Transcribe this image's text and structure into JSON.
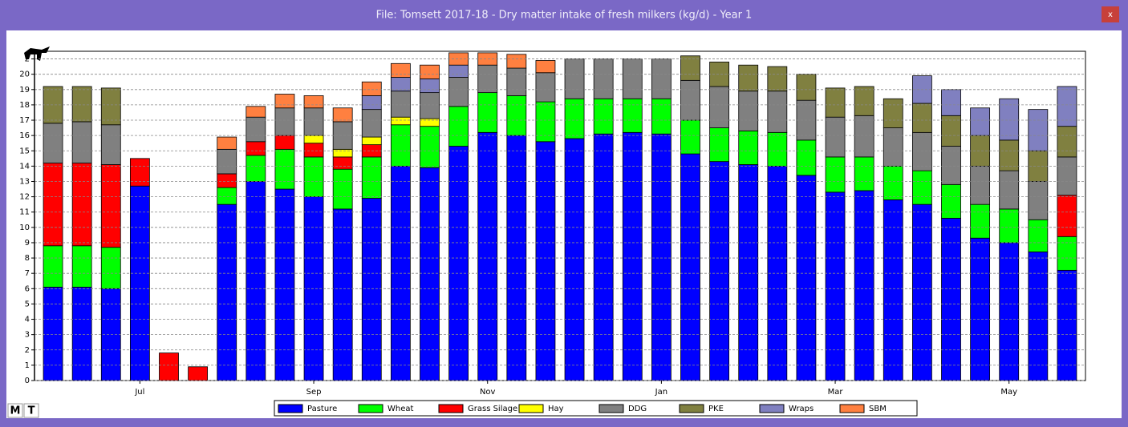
{
  "chart_data": {
    "type": "stacked_bar",
    "title": "File: Tomsett 2017-18 - Dry matter intake of fresh milkers (kg/d) - Year 1",
    "categories": [
      null,
      null,
      null,
      "Jul",
      null,
      null,
      null,
      null,
      null,
      "Sep",
      null,
      null,
      null,
      null,
      null,
      "Nov",
      null,
      null,
      null,
      null,
      null,
      "Jan",
      null,
      null,
      null,
      null,
      null,
      "Mar",
      null,
      null,
      null,
      null,
      null,
      "May",
      null,
      null
    ],
    "series": [
      {
        "name": "Pasture",
        "color": "#0000ff",
        "values": [
          6.1,
          6.1,
          6.0,
          12.7,
          0,
          0,
          11.5,
          13.0,
          12.5,
          12.0,
          11.2,
          11.9,
          14.0,
          13.9,
          15.3,
          16.2,
          16.0,
          15.6,
          15.8,
          16.1,
          16.2,
          16.1,
          14.8,
          14.3,
          14.1,
          14.0,
          13.4,
          12.3,
          12.4,
          11.8,
          11.5,
          10.6,
          9.3,
          9.0,
          8.4,
          7.2
        ]
      },
      {
        "name": "Wheat",
        "color": "#00ff00",
        "values": [
          2.7,
          2.7,
          2.7,
          0,
          0,
          0,
          1.1,
          1.7,
          2.6,
          2.6,
          2.6,
          2.7,
          2.7,
          2.7,
          2.6,
          2.6,
          2.6,
          2.6,
          2.6,
          2.3,
          2.2,
          2.3,
          2.2,
          2.2,
          2.2,
          2.2,
          2.3,
          2.3,
          2.2,
          2.2,
          2.2,
          2.2,
          2.2,
          2.2,
          2.1,
          2.2
        ]
      },
      {
        "name": "Grass Silage",
        "color": "#ff0000",
        "values": [
          5.4,
          5.4,
          5.4,
          1.8,
          1.8,
          0.9,
          0.9,
          0.9,
          0.9,
          0.9,
          0.8,
          0.8,
          0,
          0,
          0,
          0,
          0,
          0,
          0,
          0,
          0,
          0,
          0,
          0,
          0,
          0,
          0,
          0,
          0,
          0,
          0,
          0,
          0,
          0,
          0,
          2.7
        ]
      },
      {
        "name": "Hay",
        "color": "#ffff00",
        "values": [
          0,
          0,
          0,
          0,
          0,
          0,
          0,
          0,
          0,
          0.5,
          0.5,
          0.5,
          0.5,
          0.5,
          0,
          0,
          0,
          0,
          0,
          0,
          0,
          0,
          0,
          0,
          0,
          0,
          0,
          0,
          0,
          0,
          0,
          0,
          0,
          0,
          0,
          0
        ]
      },
      {
        "name": "DDG",
        "color": "#808080",
        "values": [
          2.6,
          2.7,
          2.6,
          0,
          0,
          0,
          1.6,
          1.6,
          1.8,
          1.8,
          1.8,
          1.8,
          1.7,
          1.7,
          1.9,
          1.8,
          1.8,
          1.9,
          2.6,
          2.6,
          2.6,
          2.6,
          2.6,
          2.7,
          2.6,
          2.7,
          2.6,
          2.6,
          2.7,
          2.5,
          2.5,
          2.5,
          2.5,
          2.5,
          2.5,
          2.5
        ]
      },
      {
        "name": "PKE",
        "color": "#808040",
        "values": [
          2.4,
          2.3,
          2.4,
          0,
          0,
          0,
          0,
          0,
          0,
          0,
          0,
          0,
          0,
          0,
          0,
          0,
          0,
          0,
          0,
          0,
          0,
          0,
          1.6,
          1.6,
          1.7,
          1.6,
          1.7,
          1.9,
          1.9,
          1.9,
          1.9,
          2.0,
          2.0,
          2.0,
          2.0,
          2.0
        ]
      },
      {
        "name": "Wraps",
        "color": "#8080c0",
        "values": [
          0,
          0,
          0,
          0,
          0,
          0,
          0,
          0,
          0,
          0,
          0,
          0.9,
          0.9,
          0.9,
          0.8,
          0,
          0,
          0,
          0,
          0,
          0,
          0,
          0,
          0,
          0,
          0,
          0,
          0,
          0,
          0,
          1.8,
          1.7,
          1.8,
          2.7,
          2.7,
          2.6
        ]
      },
      {
        "name": "SBM",
        "color": "#ff8040",
        "values": [
          0,
          0,
          0,
          0,
          0,
          0,
          0.8,
          0.7,
          0.9,
          0.8,
          0.9,
          0.9,
          0.9,
          0.9,
          0.8,
          0.8,
          0.9,
          0.8,
          0,
          0,
          0,
          0,
          0,
          0,
          0,
          0,
          0,
          0,
          0,
          0,
          0,
          0,
          0,
          0,
          0,
          0
        ]
      }
    ],
    "ylim": [
      0,
      21.5
    ],
    "yticks": [
      0,
      1,
      2,
      3,
      4,
      5,
      6,
      7,
      8,
      9,
      10,
      11,
      12,
      13,
      14,
      15,
      16,
      17,
      18,
      19,
      20,
      {
        "value": 21,
        "label": "2"
      }
    ],
    "grid": true,
    "legend": "bottom"
  },
  "ui": {
    "close": "x",
    "buttons": [
      "M",
      "T"
    ]
  }
}
